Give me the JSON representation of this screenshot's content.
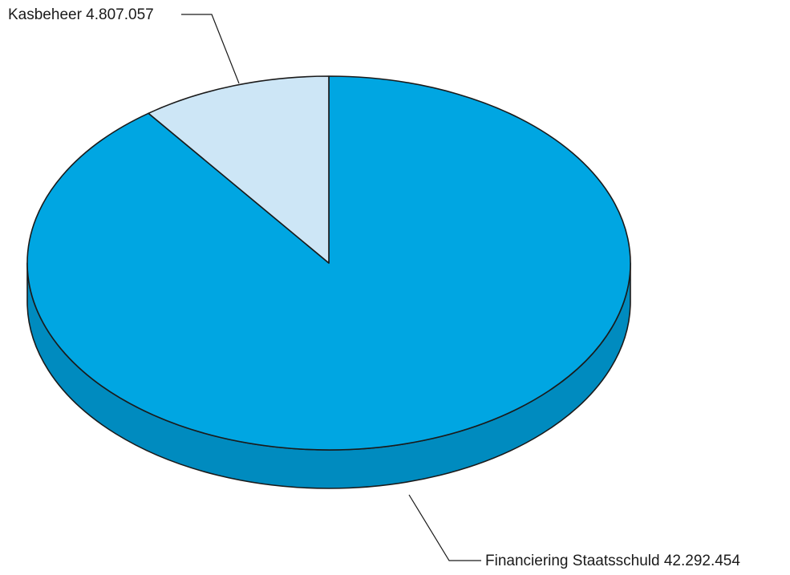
{
  "chart_data": {
    "type": "pie",
    "style": "3d",
    "slices": [
      {
        "name": "Financiering Staatsschuld",
        "value": 42292454,
        "label": "Financiering Staatsschuld 42.292.454",
        "color": "#00a6e2",
        "side_color": "#008bbf"
      },
      {
        "name": "Kasbeheer",
        "value": 4807057,
        "label": "Kasbeheer 4.807.057",
        "color": "#cde6f6",
        "side_color": "#b4d6ec"
      }
    ],
    "edge_color": "#1a1a1a",
    "legend": "none"
  }
}
